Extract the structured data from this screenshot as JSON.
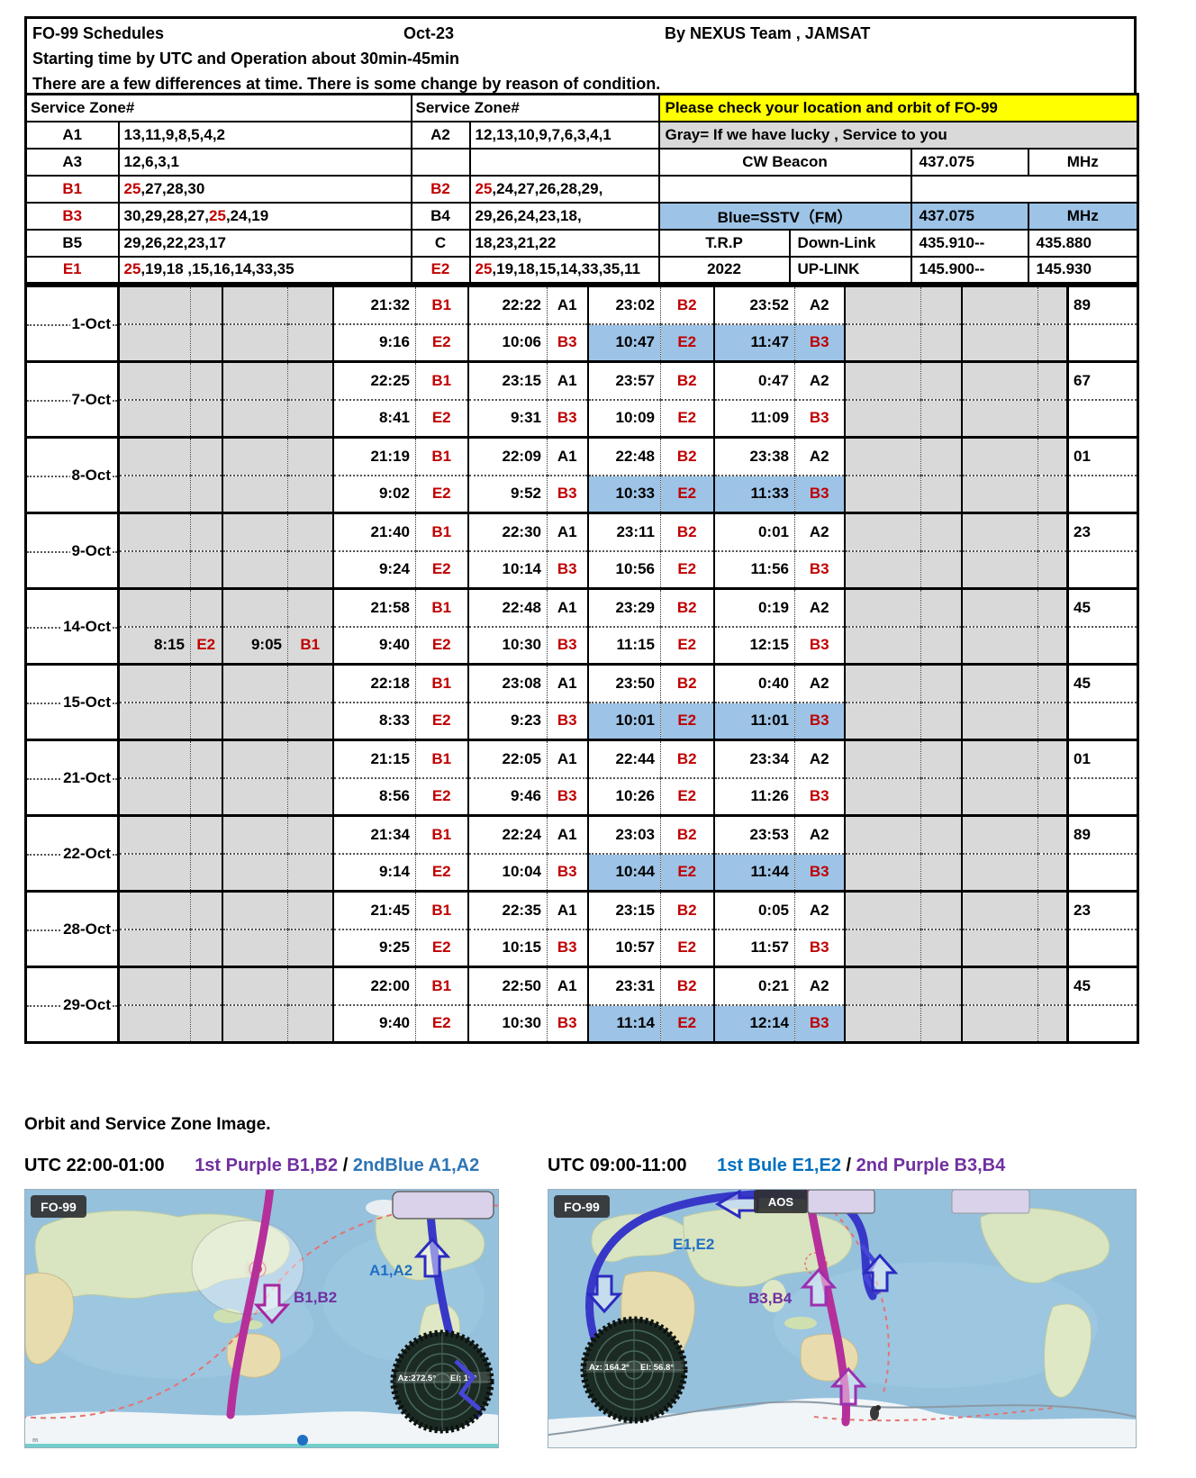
{
  "header": {
    "title": "FO-99  Schedules",
    "month": "Oct-23",
    "by": "By NEXUS Team , JAMSAT",
    "line2": "Starting time by UTC  and  Operation about 30min-45min",
    "line3": "There are a few differences at time. There is some change by reason of condition."
  },
  "zones": {
    "header_left": "Service  Zone#",
    "header_right": "Service  Zone#",
    "left": [
      {
        "label": "A1",
        "red": false,
        "value": [
          {
            "text": "13,11,9,8,5,4,2"
          }
        ]
      },
      {
        "label": "A3",
        "red": false,
        "value": [
          {
            "text": "12,6,3,1"
          }
        ]
      },
      {
        "label": "B1",
        "red": true,
        "value": [
          {
            "text": "25",
            "red": true
          },
          {
            "text": ",27,28,30"
          }
        ]
      },
      {
        "label": "B3",
        "red": true,
        "value": [
          {
            "text": "30,29,28,27,"
          },
          {
            "text": "25",
            "red": true
          },
          {
            "text": ",24,19"
          }
        ]
      },
      {
        "label": "B5",
        "red": false,
        "value": [
          {
            "text": "29,26,22,23,17"
          }
        ]
      },
      {
        "label": "E1",
        "red": true,
        "value": [
          {
            "text": "25",
            "red": true
          },
          {
            "text": ",19,18 ,15,16,14,33,35"
          }
        ]
      }
    ],
    "mid": [
      {
        "label": "A2",
        "red": false,
        "value": [
          {
            "text": "12,13,10,9,7,6,3,4,1"
          }
        ]
      },
      {
        "label": "",
        "red": false,
        "value": []
      },
      {
        "label": "B2",
        "red": true,
        "value": [
          {
            "text": "25",
            "red": true
          },
          {
            "text": ",24,27,26,28,29,"
          }
        ]
      },
      {
        "label": "B4",
        "red": false,
        "value": [
          {
            "text": "29,26,24,23,18,"
          }
        ]
      },
      {
        "label": "C",
        "red": false,
        "value": [
          {
            "text": "18,23,21,22"
          }
        ]
      },
      {
        "label": "E2",
        "red": true,
        "value": [
          {
            "text": "25",
            "red": true
          },
          {
            "text": ",19,18,15,14,33,35,11"
          }
        ]
      }
    ]
  },
  "info": {
    "yellow": "Please check your location and orbit of FO-99",
    "gray": "Gray= If we have  lucky , Service to you",
    "cw_label": "CW Beacon",
    "cw_freq": "437.075",
    "cw_unit": "MHz",
    "blue_label": "Blue=SSTV（FM）",
    "blue_freq": "437.075",
    "blue_unit": "MHz",
    "trp": "T.R.P",
    "downlink": "Down-Link",
    "down_a": "435.910--",
    "down_b": "435.880",
    "year": "2022",
    "uplink": "UP-LINK",
    "up_a": "145.900--",
    "up_b": "145.930"
  },
  "schedule": {
    "rows": [
      {
        "date": "1-Oct",
        "num": "89",
        "top": [
          null,
          null,
          {
            "t": "21:32",
            "z": "B1"
          },
          {
            "t": "22:22",
            "z": "A1"
          },
          {
            "t": "23:02",
            "z": "B2"
          },
          {
            "t": "23:52",
            "z": "A2"
          },
          null,
          null
        ],
        "bottom": [
          null,
          null,
          {
            "t": "9:16",
            "z": "E2"
          },
          {
            "t": "10:06",
            "z": "B3"
          },
          {
            "t": "10:47",
            "z": "E2",
            "hl": true
          },
          {
            "t": "11:47",
            "z": "B3",
            "hl": true
          },
          null,
          null
        ]
      },
      {
        "date": "7-Oct",
        "num": "67",
        "top": [
          null,
          null,
          {
            "t": "22:25",
            "z": "B1"
          },
          {
            "t": "23:15",
            "z": "A1"
          },
          {
            "t": "23:57",
            "z": "B2"
          },
          {
            "t": "0:47",
            "z": "A2"
          },
          null,
          null
        ],
        "bottom": [
          null,
          null,
          {
            "t": "8:41",
            "z": "E2"
          },
          {
            "t": "9:31",
            "z": "B3"
          },
          {
            "t": "10:09",
            "z": "E2"
          },
          {
            "t": "11:09",
            "z": "B3"
          },
          null,
          null
        ]
      },
      {
        "date": "8-Oct",
        "num": "01",
        "top": [
          null,
          null,
          {
            "t": "21:19",
            "z": "B1"
          },
          {
            "t": "22:09",
            "z": "A1"
          },
          {
            "t": "22:48",
            "z": "B2"
          },
          {
            "t": "23:38",
            "z": "A2"
          },
          null,
          null
        ],
        "bottom": [
          null,
          null,
          {
            "t": "9:02",
            "z": "E2"
          },
          {
            "t": "9:52",
            "z": "B3"
          },
          {
            "t": "10:33",
            "z": "E2",
            "hl": true
          },
          {
            "t": "11:33",
            "z": "B3",
            "hl": true
          },
          null,
          null
        ]
      },
      {
        "date": "9-Oct",
        "num": "23",
        "top": [
          null,
          null,
          {
            "t": "21:40",
            "z": "B1"
          },
          {
            "t": "22:30",
            "z": "A1"
          },
          {
            "t": "23:11",
            "z": "B2"
          },
          {
            "t": "0:01",
            "z": "A2"
          },
          null,
          null
        ],
        "bottom": [
          null,
          null,
          {
            "t": "9:24",
            "z": "E2"
          },
          {
            "t": "10:14",
            "z": "B3"
          },
          {
            "t": "10:56",
            "z": "E2"
          },
          {
            "t": "11:56",
            "z": "B3"
          },
          null,
          null
        ]
      },
      {
        "date": "14-Oct",
        "num": "45",
        "top": [
          null,
          null,
          {
            "t": "21:58",
            "z": "B1"
          },
          {
            "t": "22:48",
            "z": "A1"
          },
          {
            "t": "23:29",
            "z": "B2"
          },
          {
            "t": "0:19",
            "z": "A2"
          },
          null,
          null
        ],
        "bottom": [
          {
            "t": "8:15",
            "z": "E2"
          },
          {
            "t": "9:05",
            "z": "B1"
          },
          {
            "t": "9:40",
            "z": "E2"
          },
          {
            "t": "10:30",
            "z": "B3"
          },
          {
            "t": "11:15",
            "z": "E2"
          },
          {
            "t": "12:15",
            "z": "B3"
          },
          null,
          null
        ]
      },
      {
        "date": "15-Oct",
        "num": "45",
        "top": [
          null,
          null,
          {
            "t": "22:18",
            "z": "B1"
          },
          {
            "t": "23:08",
            "z": "A1"
          },
          {
            "t": "23:50",
            "z": "B2"
          },
          {
            "t": "0:40",
            "z": "A2"
          },
          null,
          null
        ],
        "bottom": [
          null,
          null,
          {
            "t": "8:33",
            "z": "E2"
          },
          {
            "t": "9:23",
            "z": "B3"
          },
          {
            "t": "10:01",
            "z": "E2",
            "hl": true
          },
          {
            "t": "11:01",
            "z": "B3",
            "hl": true
          },
          null,
          null
        ]
      },
      {
        "date": "21-Oct",
        "num": "01",
        "top": [
          null,
          null,
          {
            "t": "21:15",
            "z": "B1"
          },
          {
            "t": "22:05",
            "z": "A1"
          },
          {
            "t": "22:44",
            "z": "B2"
          },
          {
            "t": "23:34",
            "z": "A2"
          },
          null,
          null
        ],
        "bottom": [
          null,
          null,
          {
            "t": "8:56",
            "z": "E2"
          },
          {
            "t": "9:46",
            "z": "B3"
          },
          {
            "t": "10:26",
            "z": "E2"
          },
          {
            "t": "11:26",
            "z": "B3"
          },
          null,
          null
        ]
      },
      {
        "date": "22-Oct",
        "num": "89",
        "top": [
          null,
          null,
          {
            "t": "21:34",
            "z": "B1"
          },
          {
            "t": "22:24",
            "z": "A1"
          },
          {
            "t": "23:03",
            "z": "B2"
          },
          {
            "t": "23:53",
            "z": "A2"
          },
          null,
          null
        ],
        "bottom": [
          null,
          null,
          {
            "t": "9:14",
            "z": "E2"
          },
          {
            "t": "10:04",
            "z": "B3"
          },
          {
            "t": "10:44",
            "z": "E2",
            "hl": true
          },
          {
            "t": "11:44",
            "z": "B3",
            "hl": true
          },
          null,
          null
        ]
      },
      {
        "date": "28-Oct",
        "num": "23",
        "top": [
          null,
          null,
          {
            "t": "21:45",
            "z": "B1"
          },
          {
            "t": "22:35",
            "z": "A1"
          },
          {
            "t": "23:15",
            "z": "B2"
          },
          {
            "t": "0:05",
            "z": "A2"
          },
          null,
          null
        ],
        "bottom": [
          null,
          null,
          {
            "t": "9:25",
            "z": "E2"
          },
          {
            "t": "10:15",
            "z": "B3"
          },
          {
            "t": "10:57",
            "z": "E2"
          },
          {
            "t": "11:57",
            "z": "B3"
          },
          null,
          null
        ]
      },
      {
        "date": "29-Oct",
        "num": "45",
        "top": [
          null,
          null,
          {
            "t": "22:00",
            "z": "B1"
          },
          {
            "t": "22:50",
            "z": "A1"
          },
          {
            "t": "23:31",
            "z": "B2"
          },
          {
            "t": "0:21",
            "z": "A2"
          },
          null,
          null
        ],
        "bottom": [
          null,
          null,
          {
            "t": "9:40",
            "z": "E2"
          },
          {
            "t": "10:30",
            "z": "B3"
          },
          {
            "t": "11:14",
            "z": "E2",
            "hl": true
          },
          {
            "t": "12:14",
            "z": "B3",
            "hl": true
          },
          null,
          null
        ]
      }
    ]
  },
  "maps": {
    "heading": "Orbit and Service Zone Image.",
    "left": {
      "utc": "UTC 22:00-01:00",
      "legend1": "1st Purple  B1,B2",
      "slash": "/",
      "legend2": "2ndBlue A1,A2",
      "badge": "FO-99",
      "track_label1": "B1,B2",
      "track_label2": "A1,A2",
      "az": "Az:272.5°",
      "el": "El: 19°"
    },
    "right": {
      "utc": "UTC 09:00-11:00",
      "legend1": "1st Bule E1,E2",
      "slash": "/",
      "legend2": "2nd Purple  B3,B4",
      "badge": "FO-99",
      "aos": "AOS",
      "track_label1": "E1,E2",
      "track_label2": "B3,B4",
      "az": "Az: 164.2°",
      "el": "El:  56.8°"
    }
  },
  "colors": {
    "red_text": "#c00000",
    "blue_highlight": "#9dc3e6",
    "gray_cell": "#d9d9d9",
    "yellow_bar": "#ffff00",
    "purple_track": "#b5309a",
    "blue_track": "#3838c8",
    "purple_text": "#7030a0",
    "blue_text": "#0070c0"
  }
}
